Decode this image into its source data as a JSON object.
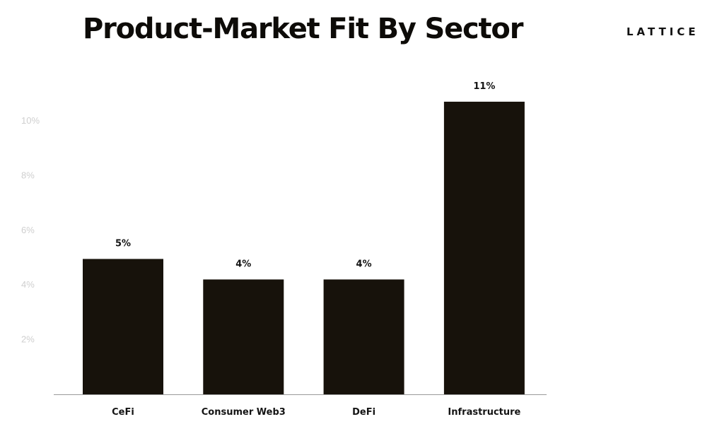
{
  "header": {
    "title": "Product-Market Fit By Sector",
    "brand": "LATTICE"
  },
  "colors": {
    "bar": "#17120b",
    "axis_line": "#9a9a9a",
    "tick_label": "#cfcfcf"
  },
  "chart_data": {
    "type": "bar",
    "title": "Product-Market Fit By Sector",
    "xlabel": "",
    "ylabel": "",
    "categories": [
      "CeFi",
      "Consumer Web3",
      "DeFi",
      "Infrastructure"
    ],
    "values": [
      5,
      4,
      4,
      11
    ],
    "plotted_values": [
      4.95,
      4.2,
      4.2,
      10.7
    ],
    "data_labels": [
      "5%",
      "4%",
      "4%",
      "11%"
    ],
    "yticks": [
      2,
      4,
      6,
      8,
      10
    ],
    "ytick_labels": [
      "2%",
      "4%",
      "6%",
      "8%",
      "10%"
    ],
    "ylim": [
      0,
      11.5
    ],
    "grid": false,
    "legend": "none"
  }
}
